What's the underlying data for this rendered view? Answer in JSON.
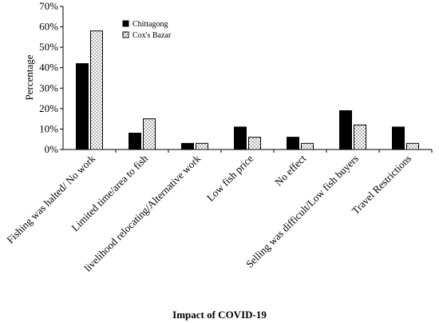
{
  "chart_data": {
    "type": "bar",
    "title": "",
    "xlabel": "Impact of COVID-19",
    "ylabel": "Percentage",
    "ylim": [
      0,
      70
    ],
    "yticks": [
      "0%",
      "10%",
      "20%",
      "30%",
      "40%",
      "50%",
      "60%",
      "70%"
    ],
    "categories": [
      "Fishing was halted/ No work",
      "Limited time/area to fish",
      "livelihood relocating/Alternative work",
      "Low fish price",
      "No effect",
      "Selling was difficult/Low fish buyers",
      "Travel Restrictions"
    ],
    "series": [
      {
        "name": "Chittagong",
        "values": [
          42,
          8,
          3,
          11,
          6,
          19,
          11
        ],
        "color": "#000000",
        "pattern": "solid"
      },
      {
        "name": "Cox's Bazar",
        "values": [
          58,
          15,
          3,
          6,
          3,
          12,
          3
        ],
        "color": "#ffffff",
        "pattern": "dotted"
      }
    ],
    "grid": false,
    "legend": "top-center"
  }
}
